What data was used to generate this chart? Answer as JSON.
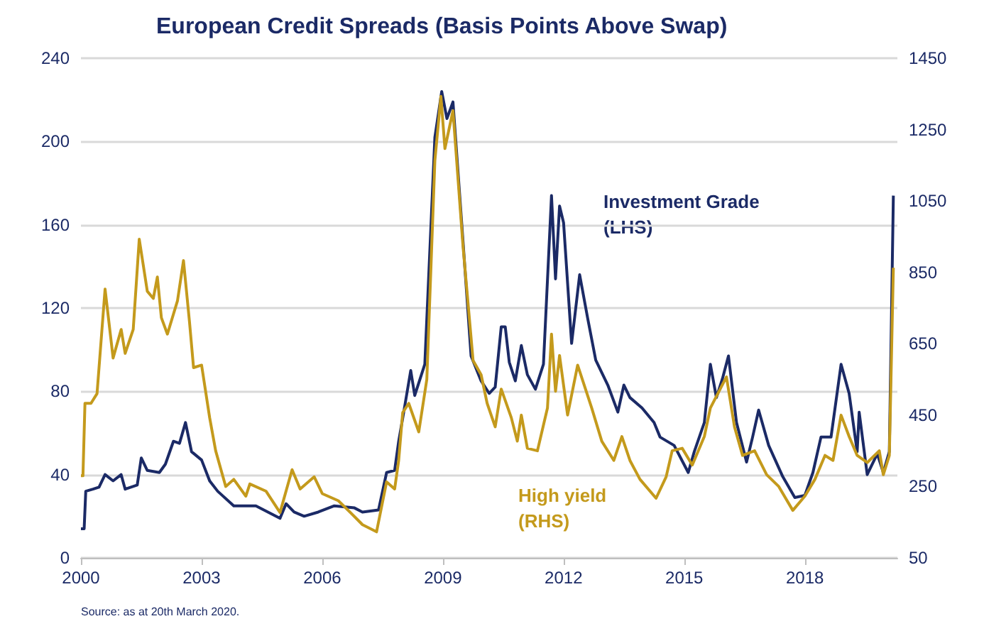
{
  "chart_data": {
    "type": "line",
    "title": "European Credit Spreads (Basis Points Above Swap)",
    "annotations": [
      "Source: as at 20th March 2020."
    ],
    "xlim": [
      2000,
      2020.3
    ],
    "xticks": [
      2000,
      2003,
      2006,
      2009,
      2012,
      2015,
      2018
    ],
    "ylim": [
      0,
      240
    ],
    "yticks": [
      0,
      40,
      80,
      120,
      160,
      200,
      240
    ],
    "y2lim": [
      50,
      1450
    ],
    "y2ticks": [
      50,
      250,
      450,
      650,
      850,
      1050,
      1250,
      1450
    ],
    "grid": "y",
    "legend": false,
    "series": [
      {
        "name": "Investment Grade (LHS)",
        "color": "#1b2a66",
        "x": [
          2000.0,
          2000.08,
          2000.12,
          2000.3,
          2000.45,
          2000.6,
          2000.8,
          2001.0,
          2001.1,
          2001.4,
          2001.5,
          2001.65,
          2001.95,
          2002.1,
          2002.3,
          2002.45,
          2002.6,
          2002.75,
          2003.0,
          2003.2,
          2003.4,
          2003.8,
          2004.35,
          2004.95,
          2005.1,
          2005.3,
          2005.55,
          2005.9,
          2006.3,
          2006.8,
          2007.0,
          2007.4,
          2007.6,
          2007.8,
          2007.9,
          2008.0,
          2008.2,
          2008.3,
          2008.55,
          2008.8,
          2008.97,
          2009.1,
          2009.25,
          2009.5,
          2009.7,
          2009.95,
          2010.15,
          2010.3,
          2010.45,
          2010.55,
          2010.65,
          2010.8,
          2010.95,
          2011.1,
          2011.3,
          2011.5,
          2011.7,
          2011.8,
          2011.9,
          2012.0,
          2012.2,
          2012.4,
          2012.6,
          2012.8,
          2013.1,
          2013.35,
          2013.5,
          2013.65,
          2013.95,
          2014.25,
          2014.4,
          2014.75,
          2015.1,
          2015.25,
          2015.5,
          2015.65,
          2015.8,
          2015.95,
          2016.1,
          2016.3,
          2016.55,
          2016.7,
          2016.85,
          2017.1,
          2017.45,
          2017.75,
          2018.0,
          2018.2,
          2018.4,
          2018.65,
          2018.9,
          2019.1,
          2019.3,
          2019.35,
          2019.55,
          2019.8,
          2019.95,
          2020.1,
          2020.2
        ],
        "values": [
          14,
          14,
          32,
          33,
          34,
          40,
          37,
          40,
          33,
          35,
          48,
          42,
          41,
          45,
          56,
          55,
          65,
          51,
          47,
          37,
          32,
          25,
          25,
          19,
          26,
          22,
          20,
          22,
          25,
          24,
          22,
          23,
          41,
          42,
          56,
          67,
          90,
          78,
          93,
          202,
          224,
          211,
          219,
          152,
          97,
          85,
          79,
          82,
          111,
          111,
          94,
          85,
          102,
          88,
          81,
          93,
          174,
          134,
          169,
          161,
          103,
          136,
          115,
          95,
          83,
          70,
          83,
          77,
          72,
          65,
          58,
          54,
          41,
          51,
          65,
          93,
          77,
          86,
          97,
          65,
          46,
          58,
          71,
          54,
          39,
          29,
          30,
          41,
          58,
          58,
          93,
          79,
          51,
          70,
          40,
          50,
          41,
          51,
          174
        ]
      },
      {
        "name": "High yield (RHS)",
        "color": "#c49a1c",
        "axis": "y2",
        "x": [
          2000.0,
          2000.05,
          2000.1,
          2000.25,
          2000.4,
          2000.6,
          2000.8,
          2001.0,
          2001.1,
          2001.3,
          2001.45,
          2001.65,
          2001.8,
          2001.9,
          2002.0,
          2002.15,
          2002.4,
          2002.55,
          2002.7,
          2002.8,
          2003.0,
          2003.2,
          2003.35,
          2003.6,
          2003.8,
          2004.1,
          2004.2,
          2004.6,
          2004.95,
          2005.25,
          2005.45,
          2005.8,
          2006.0,
          2006.4,
          2006.7,
          2007.0,
          2007.35,
          2007.6,
          2007.8,
          2007.9,
          2008.0,
          2008.15,
          2008.4,
          2008.6,
          2008.8,
          2008.95,
          2009.05,
          2009.25,
          2009.5,
          2009.75,
          2009.95,
          2010.1,
          2010.3,
          2010.45,
          2010.7,
          2010.85,
          2010.95,
          2011.1,
          2011.35,
          2011.6,
          2011.7,
          2011.8,
          2011.9,
          2012.1,
          2012.35,
          2012.7,
          2012.95,
          2013.25,
          2013.45,
          2013.65,
          2013.9,
          2014.3,
          2014.55,
          2014.7,
          2014.95,
          2015.2,
          2015.5,
          2015.65,
          2016.05,
          2016.25,
          2016.45,
          2016.75,
          2017.05,
          2017.35,
          2017.7,
          2018.0,
          2018.25,
          2018.5,
          2018.7,
          2018.9,
          2019.1,
          2019.3,
          2019.55,
          2019.85,
          2019.95,
          2020.1,
          2020.2
        ],
        "values": [
          280,
          280,
          483,
          483,
          510,
          803,
          610,
          690,
          623,
          690,
          943,
          797,
          777,
          837,
          723,
          677,
          770,
          883,
          710,
          583,
          590,
          443,
          350,
          250,
          270,
          223,
          257,
          237,
          177,
          297,
          243,
          277,
          230,
          210,
          177,
          143,
          123,
          263,
          243,
          323,
          457,
          483,
          403,
          550,
          1163,
          1343,
          1197,
          1303,
          923,
          603,
          563,
          483,
          417,
          523,
          443,
          377,
          450,
          357,
          350,
          470,
          677,
          517,
          617,
          450,
          590,
          470,
          377,
          323,
          390,
          323,
          270,
          217,
          277,
          350,
          357,
          310,
          390,
          470,
          557,
          417,
          337,
          350,
          283,
          250,
          183,
          223,
          270,
          337,
          323,
          450,
          390,
          337,
          317,
          350,
          283,
          337,
          863
        ]
      }
    ]
  }
}
